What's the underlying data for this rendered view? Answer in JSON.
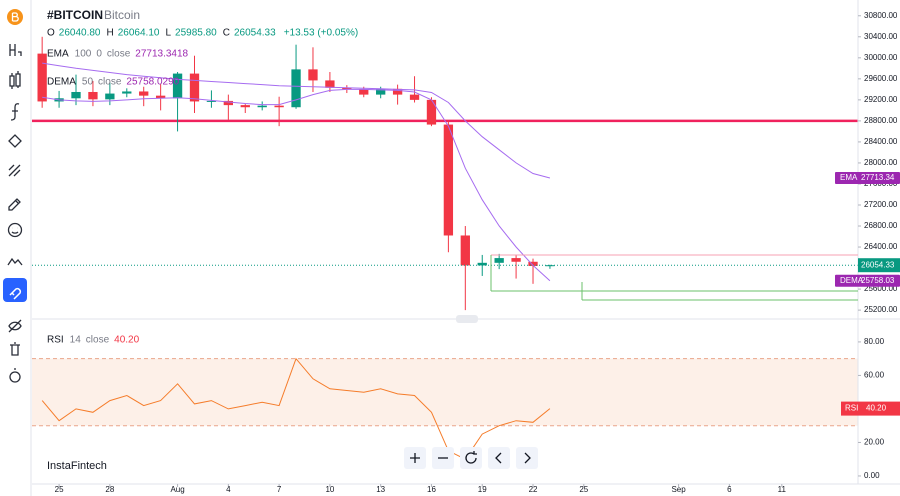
{
  "chart_data": {
    "type": "candlestick",
    "symbol": "#BITCOIN",
    "name": "Bitcoin",
    "ohlc_header": [
      {
        "key": "O",
        "value": "26040.80"
      },
      {
        "key": "H",
        "value": "26064.10"
      },
      {
        "key": "L",
        "value": "25985.80"
      },
      {
        "key": "C",
        "value": "26054.33"
      }
    ],
    "change": "+13.53 (+0.05%)",
    "x": [
      24,
      25,
      26,
      27,
      28,
      29,
      30,
      31,
      32,
      33,
      34,
      35,
      36,
      37,
      38,
      39,
      40,
      41,
      42,
      43,
      44,
      45,
      46,
      47,
      48,
      49,
      50,
      51,
      52,
      53,
      54
    ],
    "open": [
      30080,
      29170,
      29230,
      29350,
      29210,
      29320,
      29360,
      29280,
      29230,
      29700,
      29170,
      29180,
      29100,
      29060,
      29090,
      29060,
      29780,
      29570,
      29430,
      29400,
      29300,
      29410,
      29300,
      29200,
      28730,
      26620,
      26050,
      26100,
      26190,
      26120,
      26040.8
    ],
    "high": [
      30400,
      29370,
      29680,
      29560,
      29530,
      29420,
      29450,
      29500,
      29730,
      30040,
      29380,
      29300,
      29120,
      29170,
      29260,
      30250,
      30200,
      29730,
      29480,
      29450,
      29450,
      29490,
      29650,
      29250,
      28800,
      26800,
      26250,
      26270,
      26250,
      26180,
      26064.1
    ],
    "low": [
      29050,
      29050,
      29100,
      29080,
      29100,
      29250,
      29080,
      29000,
      28600,
      28950,
      29050,
      28820,
      28950,
      29000,
      28700,
      29030,
      29350,
      29350,
      29330,
      29250,
      29230,
      29110,
      29150,
      28700,
      26300,
      25200,
      25850,
      25980,
      25800,
      25700,
      25985.8
    ],
    "close": [
      29170,
      29230,
      29350,
      29210,
      29320,
      29360,
      29280,
      29230,
      29700,
      29170,
      29180,
      29100,
      29060,
      29090,
      29060,
      29780,
      29570,
      29430,
      29400,
      29300,
      29410,
      29300,
      29200,
      28730,
      26620,
      26050,
      26100,
      26190,
      26120,
      26040,
      26054.33
    ],
    "up_color": "#089981",
    "down_color": "#f23645",
    "xlim": [
      23.4,
      72.2
    ],
    "xticks": [
      25,
      28,
      {
        "value": 32,
        "label": "Aug"
      },
      {
        "value": 35,
        "label": "4"
      },
      {
        "value": 38,
        "label": "7"
      },
      {
        "value": 41,
        "label": "10"
      },
      {
        "value": 44,
        "label": "13"
      },
      {
        "value": 47,
        "label": "16"
      },
      {
        "value": 50,
        "label": "19"
      },
      {
        "value": 53,
        "label": "22"
      },
      {
        "value": 56,
        "label": "25"
      },
      {
        "value": 61.6,
        "label": "Sep"
      },
      {
        "value": 64.6,
        "label": "6"
      },
      {
        "value": 67.7,
        "label": "11"
      }
    ],
    "ylim": [
      25050,
      31100
    ],
    "yticks": [
      {
        "value": 25200,
        "label": "25200.00"
      },
      {
        "value": 25600,
        "label": "25600.00"
      },
      {
        "value": 26000,
        "label": "26000.00"
      },
      {
        "value": 26400,
        "label": "26400.00"
      },
      {
        "value": 26800,
        "label": "26800.00"
      },
      {
        "value": 27200,
        "label": "27200.00"
      },
      {
        "value": 27600,
        "label": "27600.00"
      },
      {
        "value": 28000,
        "label": "28000.00"
      },
      {
        "value": 28400,
        "label": "28400.00"
      },
      {
        "value": 28800,
        "label": "28800.00"
      },
      {
        "value": 29200,
        "label": "29200.00"
      },
      {
        "value": 29600,
        "label": "29600.00"
      },
      {
        "value": 30000,
        "label": "30000.00"
      },
      {
        "value": 30400,
        "label": "30400.00"
      },
      {
        "value": 30800,
        "label": "30800.00"
      }
    ],
    "horizontal_line": {
      "value": 28800,
      "color": "#f0225d"
    },
    "indicators": [
      {
        "name": "EMA",
        "params": [
          "100",
          "0",
          "close"
        ],
        "value_label": "27713.3418",
        "axis_label": "27713.34",
        "color": "#a66cf0",
        "values": [
          29900,
          29850,
          29800,
          29760,
          29720,
          29680,
          29650,
          29620,
          29590,
          29570,
          29550,
          29530,
          29510,
          29490,
          29470,
          29460,
          29450,
          29440,
          29430,
          29420,
          29410,
          29400,
          29390,
          29340,
          29150,
          28800,
          28500,
          28250,
          28000,
          27800,
          27713.34
        ]
      },
      {
        "name": "DEMA",
        "params": [
          "50",
          "close"
        ],
        "value_label": "25758.0290",
        "axis_label": "25758.03",
        "color": "#a66cf0",
        "values": [
          29250,
          29200,
          29180,
          29170,
          29180,
          29200,
          29220,
          29230,
          29240,
          29220,
          29190,
          29160,
          29130,
          29110,
          29110,
          29200,
          29300,
          29380,
          29400,
          29400,
          29390,
          29380,
          29350,
          29200,
          28700,
          27900,
          27300,
          26800,
          26400,
          26050,
          25758.03
        ]
      }
    ],
    "rsi": {
      "name": "RSI",
      "params": [
        "14",
        "close"
      ],
      "value_label": "40.20",
      "color": "#f57c2a",
      "values": [
        45,
        33,
        40,
        38,
        45,
        48,
        42,
        45,
        55,
        43,
        45,
        40,
        42,
        44,
        42,
        70,
        58,
        52,
        51,
        50,
        52,
        49,
        48,
        38,
        15,
        10,
        25,
        30,
        33,
        32,
        40.2
      ],
      "levels": [
        30,
        70
      ],
      "ylim": [
        -4.8,
        89.5
      ],
      "yticks": [
        {
          "value": 0,
          "label": "0.00"
        },
        {
          "value": 20,
          "label": "20.00"
        },
        {
          "value": 40,
          "label": "40.00"
        },
        {
          "value": 60,
          "label": "60.00"
        },
        {
          "value": 80,
          "label": "80.00"
        }
      ]
    },
    "watermark": "InstaFintech"
  }
}
